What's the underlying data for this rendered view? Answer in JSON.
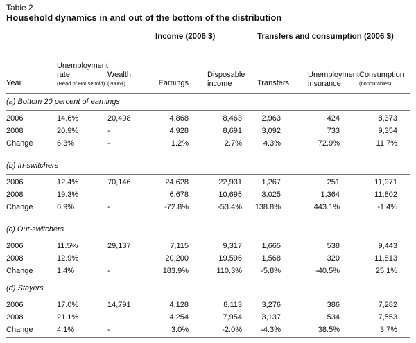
{
  "table": {
    "label": "Table 2.",
    "title": "Household dynamics in and out of the bottom of the distribution"
  },
  "group_headers": {
    "income": "Income (2006 $)",
    "transfers": "Transfers and consumption (2006 $)"
  },
  "columns": {
    "year": "Year",
    "unemp_rate": "Unemployment",
    "unemp_rate_2": "rate",
    "unemp_rate_sub": "(Head of Household)",
    "wealth": "Wealth",
    "wealth_sub": "(2006$)",
    "earnings": "Earnings",
    "disposable": "Disposable",
    "disposable_2": "income",
    "transfers": "Transfers",
    "ui": "Unemployment",
    "ui_2": "insurance",
    "consumption": "Consumption",
    "consumption_sub": "(nondurables)"
  },
  "sections": [
    {
      "title": "(a) Bottom 20 percent of earnings",
      "rows": [
        {
          "year": "2006",
          "unemp": "14.6%",
          "wealth": "20,498",
          "earnings": "4,868",
          "disposable": "8,463",
          "transfers": "2,963",
          "ui": "424",
          "consumption": "8,373"
        },
        {
          "year": "2008",
          "unemp": "20.9%",
          "wealth": "-",
          "earnings": "4,928",
          "disposable": "8,691",
          "transfers": "3,092",
          "ui": "733",
          "consumption": "9,354"
        },
        {
          "year": "Change",
          "unemp": "6.3%",
          "wealth": "-",
          "earnings": "1.2%",
          "disposable": "2.7%",
          "transfers": "4.3%",
          "ui": "72.9%",
          "consumption": "11.7%"
        }
      ]
    },
    {
      "title": "(b) In-switchers",
      "rows": [
        {
          "year": "2006",
          "unemp": "12.4%",
          "wealth": "70,146",
          "earnings": "24,628",
          "disposable": "22,931",
          "transfers": "1,267",
          "ui": "251",
          "consumption": "11,971"
        },
        {
          "year": "2008",
          "unemp": "19.3%",
          "wealth": "",
          "earnings": "6,678",
          "disposable": "10,695",
          "transfers": "3,025",
          "ui": "1,364",
          "consumption": "11,802"
        },
        {
          "year": "Change",
          "unemp": "6.9%",
          "wealth": "-",
          "earnings": "-72.8%",
          "disposable": "-53.4%",
          "transfers": "138.8%",
          "ui": "443.1%",
          "consumption": "-1.4%"
        }
      ]
    },
    {
      "title": "(c) Out-switchers",
      "rows": [
        {
          "year": "2006",
          "unemp": "11.5%",
          "wealth": "29,137",
          "earnings": "7,115",
          "disposable": "9,317",
          "transfers": "1,665",
          "ui": "538",
          "consumption": "9,443"
        },
        {
          "year": "2008",
          "unemp": "12.9%",
          "wealth": "",
          "earnings": "20,200",
          "disposable": "19,596",
          "transfers": "1,568",
          "ui": "320",
          "consumption": "11,813"
        },
        {
          "year": "Change",
          "unemp": "1.4%",
          "wealth": "-",
          "earnings": "183.9%",
          "disposable": "110.3%",
          "transfers": "-5.8%",
          "ui": "-40.5%",
          "consumption": "25.1%"
        }
      ]
    },
    {
      "title": "(d) Stayers",
      "rows": [
        {
          "year": "2006",
          "unemp": "17.0%",
          "wealth": "14,791",
          "earnings": "4,128",
          "disposable": "8,113",
          "transfers": "3,276",
          "ui": "386",
          "consumption": "7,282"
        },
        {
          "year": "2008",
          "unemp": "21.1%",
          "wealth": "",
          "earnings": "4,254",
          "disposable": "7,954",
          "transfers": "3,137",
          "ui": "534",
          "consumption": "7,553"
        },
        {
          "year": "Change",
          "unemp": "4.1%",
          "wealth": "-",
          "earnings": "3.0%",
          "disposable": "-2.0%",
          "transfers": "-4.3%",
          "ui": "38.5%",
          "consumption": "3.7%"
        }
      ]
    }
  ]
}
